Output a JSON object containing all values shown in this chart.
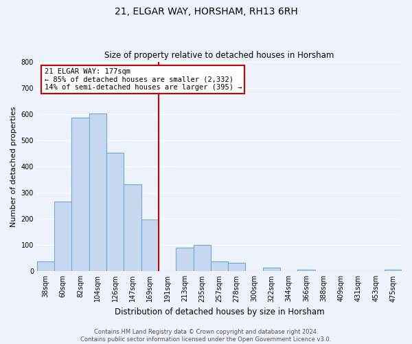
{
  "title": "21, ELGAR WAY, HORSHAM, RH13 6RH",
  "subtitle": "Size of property relative to detached houses in Horsham",
  "xlabel": "Distribution of detached houses by size in Horsham",
  "ylabel": "Number of detached properties",
  "bar_labels": [
    "38sqm",
    "60sqm",
    "82sqm",
    "104sqm",
    "126sqm",
    "147sqm",
    "169sqm",
    "191sqm",
    "213sqm",
    "235sqm",
    "257sqm",
    "278sqm",
    "300sqm",
    "322sqm",
    "344sqm",
    "366sqm",
    "388sqm",
    "409sqm",
    "431sqm",
    "453sqm",
    "475sqm"
  ],
  "bar_values": [
    38,
    265,
    585,
    603,
    453,
    332,
    197,
    0,
    90,
    100,
    38,
    32,
    0,
    13,
    0,
    5,
    0,
    0,
    0,
    0,
    5
  ],
  "bar_color": "#c5d8f0",
  "bar_edge_color": "#6aaad4",
  "vline_color": "#cc0000",
  "annotation_title": "21 ELGAR WAY: 177sqm",
  "annotation_line1": "← 85% of detached houses are smaller (2,332)",
  "annotation_line2": "14% of semi-detached houses are larger (395) →",
  "annotation_box_color": "#ffffff",
  "annotation_box_edge": "#cc0000",
  "ylim": [
    0,
    800
  ],
  "yticks": [
    0,
    100,
    200,
    300,
    400,
    500,
    600,
    700,
    800
  ],
  "footer1": "Contains HM Land Registry data © Crown copyright and database right 2024.",
  "footer2": "Contains public sector information licensed under the Open Government Licence v3.0.",
  "bg_color": "#eef2fa",
  "title_fontsize": 10,
  "subtitle_fontsize": 8.5,
  "ylabel_fontsize": 8,
  "xlabel_fontsize": 8.5,
  "tick_fontsize": 7,
  "footer_fontsize": 6
}
